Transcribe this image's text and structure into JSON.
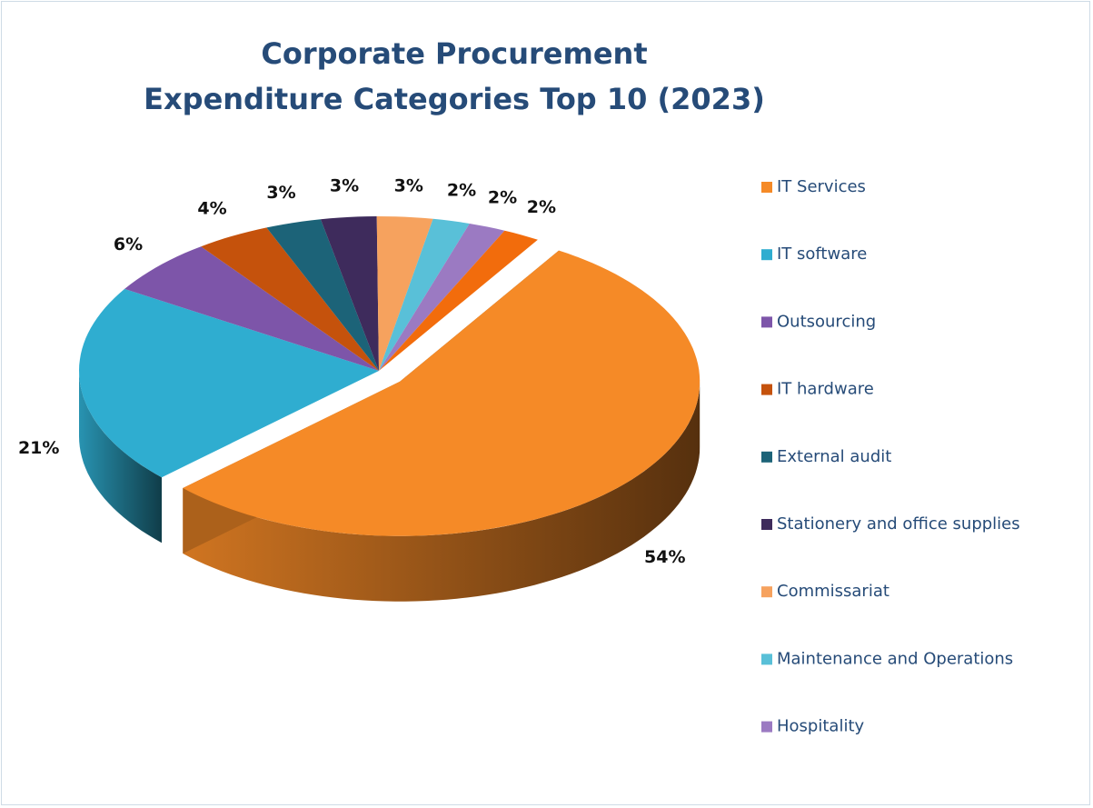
{
  "chart_data": {
    "type": "pie3d",
    "title": "Corporate Procurement\nExpenditure Categories Top 10 (2023)",
    "categories": [
      "IT Services",
      "IT software",
      "Outsourcing",
      "IT hardware",
      "External audit",
      "Stationery and office supplies",
      "Commissariat",
      "Maintenance and Operations",
      "Hospitality",
      null
    ],
    "values": [
      54,
      21,
      6,
      4,
      3,
      3,
      3,
      2,
      2,
      2
    ],
    "value_labels": [
      "54%",
      "21%",
      "6%",
      "4%",
      "3%",
      "3%",
      "3%",
      "2%",
      "2%",
      "2%"
    ],
    "colors": [
      "#f58a27",
      "#2fadd0",
      "#7d55a9",
      "#c5520c",
      "#1c6378",
      "#3e2b5c",
      "#f6a25e",
      "#59c0d8",
      "#9b7ac2",
      "#f26c0c"
    ],
    "legend": "right"
  }
}
